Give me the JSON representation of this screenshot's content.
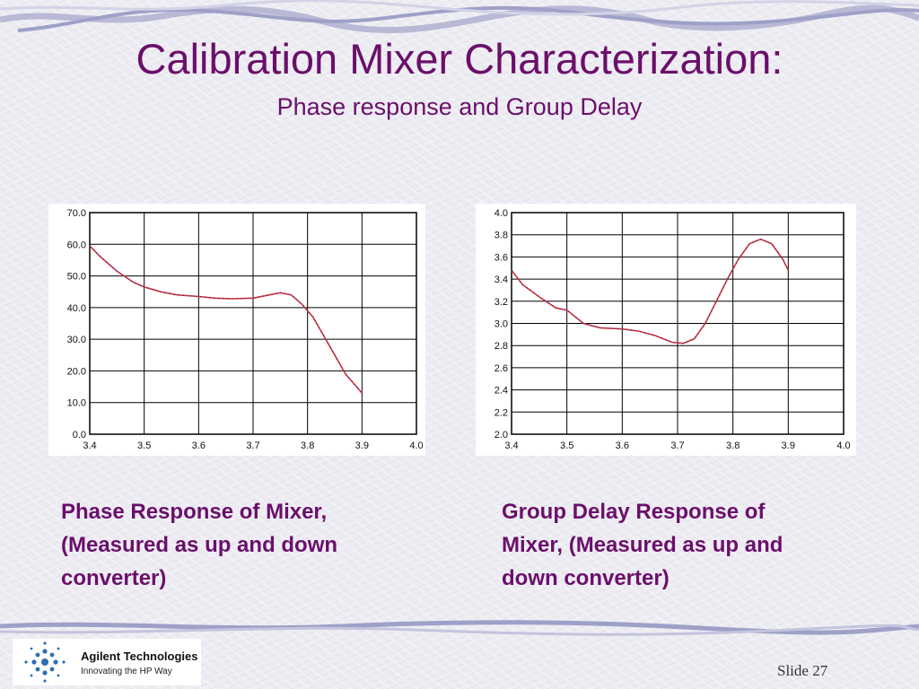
{
  "slide": {
    "title": "Calibration Mixer Characterization:",
    "subtitle": "Phase response and Group Delay",
    "slide_number": "Slide 27",
    "logo": {
      "brand": "Agilent Technologies",
      "tagline": "Innovating the HP Way"
    },
    "colors": {
      "title": "#6b0f6b",
      "trace_red": "#e03020",
      "trace_blue": "#3030c0"
    }
  },
  "captions": {
    "left": [
      "Phase Response of Mixer,",
      "(Measured as up and down",
      "converter)"
    ],
    "right": [
      "Group Delay Response of",
      "Mixer, (Measured as up and",
      "down converter)"
    ]
  },
  "chart_data": [
    {
      "type": "line",
      "title": "",
      "xlabel": "",
      "ylabel": "",
      "xlim": [
        3.4,
        4.0
      ],
      "ylim": [
        0.0,
        70.0
      ],
      "grid": true,
      "x_ticks": [
        "3.4",
        "3.5",
        "3.6",
        "3.7",
        "3.8",
        "3.9",
        "4.0"
      ],
      "y_ticks": [
        "70.0",
        "60.0",
        "50.0",
        "40.0",
        "30.0",
        "20.0",
        "10.0",
        "0.0"
      ],
      "series": [
        {
          "x": [
            3.4,
            3.42,
            3.45,
            3.48,
            3.5,
            3.53,
            3.56,
            3.6,
            3.63,
            3.66,
            3.7,
            3.73,
            3.75,
            3.77,
            3.79,
            3.81,
            3.83,
            3.85,
            3.87,
            3.89,
            3.9
          ],
          "y": [
            59.5,
            56.0,
            51.5,
            48.0,
            46.5,
            45.0,
            44.0,
            43.5,
            43.0,
            42.8,
            43.0,
            44.0,
            44.7,
            44.0,
            41.0,
            37.0,
            31.0,
            25.0,
            19.0,
            15.0,
            13.0
          ]
        }
      ]
    },
    {
      "type": "line",
      "title": "",
      "xlabel": "",
      "ylabel": "",
      "xlim": [
        3.4,
        4.0
      ],
      "ylim": [
        2.0,
        4.0
      ],
      "grid": true,
      "x_ticks": [
        "3.4",
        "3.5",
        "3.6",
        "3.7",
        "3.8",
        "3.9",
        "4.0"
      ],
      "y_ticks": [
        "4.0",
        "3.8",
        "3.6",
        "3.4",
        "3.2",
        "3.0",
        "2.8",
        "2.6",
        "2.4",
        "2.2",
        "2.0"
      ],
      "series": [
        {
          "x": [
            3.4,
            3.42,
            3.45,
            3.48,
            3.5,
            3.53,
            3.56,
            3.6,
            3.63,
            3.66,
            3.69,
            3.71,
            3.73,
            3.75,
            3.77,
            3.79,
            3.81,
            3.83,
            3.85,
            3.87,
            3.89,
            3.9
          ],
          "y": [
            3.48,
            3.35,
            3.24,
            3.14,
            3.12,
            3.0,
            2.96,
            2.95,
            2.93,
            2.89,
            2.83,
            2.82,
            2.86,
            3.0,
            3.2,
            3.4,
            3.58,
            3.72,
            3.76,
            3.72,
            3.58,
            3.48
          ]
        }
      ]
    }
  ]
}
